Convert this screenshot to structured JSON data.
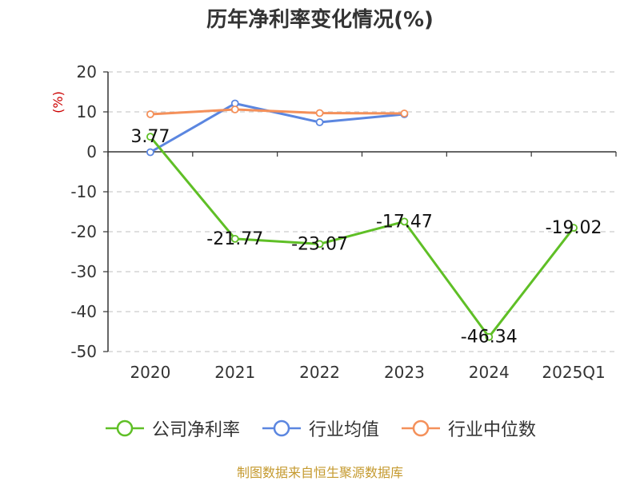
{
  "chart_data": {
    "type": "line",
    "title": "历年净利率变化情况(%)",
    "ylabel": "(%)",
    "xlabel": "",
    "categories": [
      "2020",
      "2021",
      "2022",
      "2023",
      "2024",
      "2025Q1"
    ],
    "ylim": [
      -50,
      20
    ],
    "yticks": [
      20,
      10,
      0,
      -10,
      -20,
      -30,
      -40,
      -50
    ],
    "grid": true,
    "legend_position": "bottom",
    "series": [
      {
        "name": "公司净利率",
        "color": "#5fbf26",
        "values": [
          3.77,
          -21.77,
          -23.07,
          -17.47,
          -46.34,
          -19.02
        ],
        "labels": [
          "3.77",
          "-21.77",
          "-23.07",
          "-17.47",
          "-46.34",
          "-19.02"
        ]
      },
      {
        "name": "行业均值",
        "color": "#5b86e0",
        "values": [
          -0.1,
          12.1,
          7.4,
          9.4,
          null,
          null
        ]
      },
      {
        "name": "行业中位数",
        "color": "#f4905a",
        "values": [
          9.4,
          10.6,
          9.7,
          9.6,
          null,
          null
        ]
      }
    ]
  },
  "footer": {
    "source": "制图数据来自恒生聚源数据库"
  }
}
